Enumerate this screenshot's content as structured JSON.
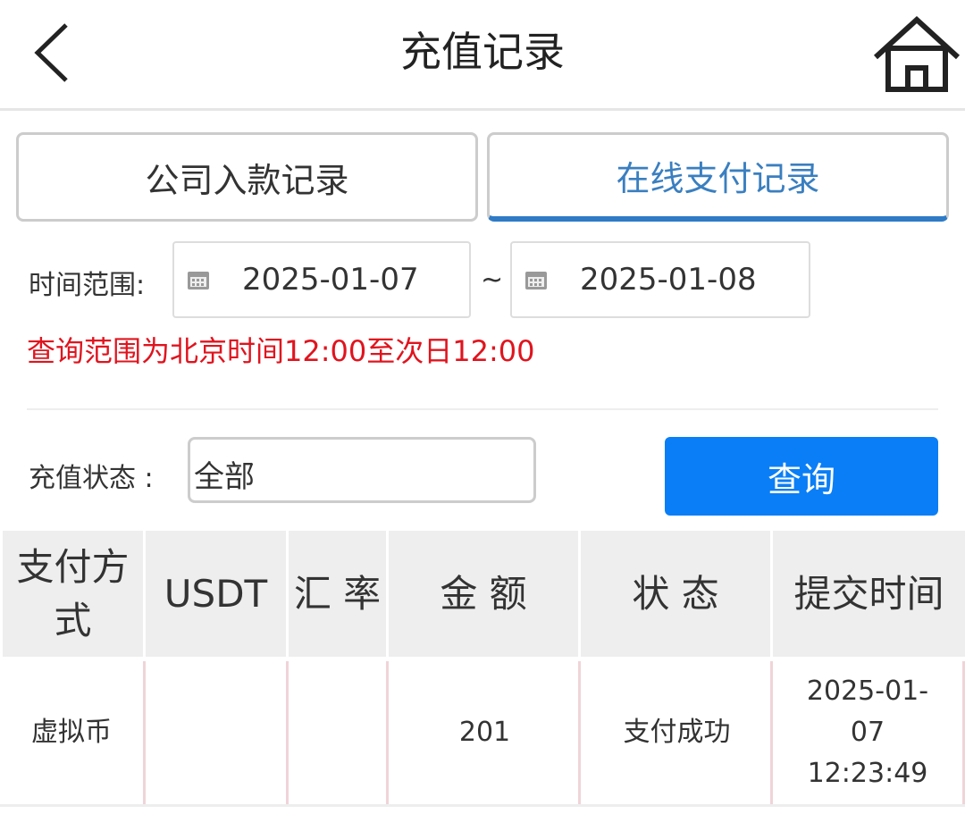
{
  "header": {
    "title": "充值记录",
    "back_icon": "chevron-left-icon",
    "home_icon": "home-icon"
  },
  "tabs": [
    {
      "label": "公司入款记录",
      "active": false
    },
    {
      "label": "在线支付记录",
      "active": true
    }
  ],
  "filter": {
    "time_label": "时间范围:",
    "start_date": "2025-01-07",
    "separator": "~",
    "end_date": "2025-01-08",
    "calendar_icon": "calendar-icon",
    "notice": "查询范围为北京时间12:00至次日12:00",
    "status_label": "充值状态 :",
    "status_value": "全部",
    "query_button": "查询"
  },
  "colors": {
    "accent": "#0a7ef6",
    "tab_active": "#3a7fc0",
    "warning": "#e0141e"
  },
  "table": {
    "headers": [
      "支付方式",
      "USDT",
      "汇 率",
      "金 额",
      "状 态",
      "提交时间"
    ],
    "rows": [
      {
        "method": "虚拟币",
        "usdt": "",
        "rate": "",
        "amount": "201",
        "status": "支付成功",
        "time": "2025-01-07 12:23:49"
      }
    ]
  }
}
